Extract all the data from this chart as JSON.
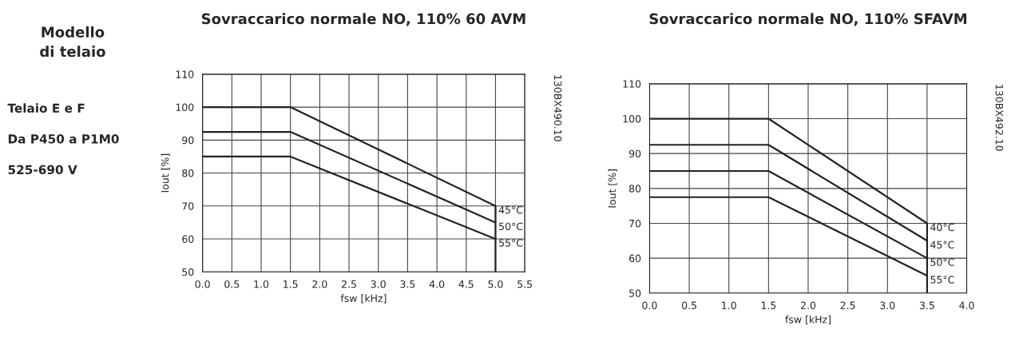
{
  "chart_data": [
    {
      "type": "other",
      "title": "Modello\ndi telaio",
      "annotations": [
        "Telaio E e F",
        "Da P450 a P1M0",
        "525-690 V"
      ]
    },
    {
      "type": "line",
      "title": "Sovraccarico normale NO, 110% 60 AVM",
      "xlabel": "fsw [kHz]",
      "ylabel": "Iout [%]",
      "xlim": [
        0,
        5.5
      ],
      "ylim": [
        50,
        110
      ],
      "xticks": [
        {
          "value": 0,
          "label": "0.0"
        },
        {
          "value": 0.5,
          "label": "0.5"
        },
        {
          "value": 1,
          "label": "1.0"
        },
        {
          "value": 1.5,
          "label": "1.5"
        },
        {
          "value": 2,
          "label": "2.0"
        },
        {
          "value": 2.5,
          "label": "2.5"
        },
        {
          "value": 3,
          "label": "3.0"
        },
        {
          "value": 3.5,
          "label": "3.5"
        },
        {
          "value": 4,
          "label": "4.0"
        },
        {
          "value": 4.5,
          "label": "4.5"
        },
        {
          "value": 5,
          "label": "5.0"
        },
        {
          "value": 5.5,
          "label": "5.5"
        }
      ],
      "yticks": [
        50,
        60,
        70,
        80,
        90,
        100,
        110
      ],
      "grid": true,
      "legend": false,
      "annotations": [
        "130BX490.10"
      ],
      "series": [
        {
          "name": "45°C",
          "color": "#222222",
          "x": [
            0,
            1.5,
            5,
            5
          ],
          "values": [
            100,
            100,
            70,
            50
          ]
        },
        {
          "name": "50°C",
          "color": "#222222",
          "x": [
            0,
            1.5,
            5
          ],
          "values": [
            92.5,
            92.5,
            65
          ]
        },
        {
          "name": "55°C",
          "color": "#222222",
          "x": [
            0,
            1.5,
            5
          ],
          "values": [
            85,
            85,
            60
          ]
        }
      ]
    },
    {
      "type": "line",
      "title": "Sovraccarico normale NO, 110% SFAVM",
      "xlabel": "fsw [kHz]",
      "ylabel": "Iout [%]",
      "xlim": [
        0,
        4
      ],
      "ylim": [
        50,
        110
      ],
      "xticks": [
        {
          "value": 0,
          "label": "0.0"
        },
        {
          "value": 0.5,
          "label": "0.5"
        },
        {
          "value": 1,
          "label": "1.0"
        },
        {
          "value": 1.5,
          "label": "1.5"
        },
        {
          "value": 2,
          "label": "2.0"
        },
        {
          "value": 2.5,
          "label": "2.5"
        },
        {
          "value": 3,
          "label": "3.0"
        },
        {
          "value": 3.5,
          "label": "3.5"
        },
        {
          "value": 4,
          "label": "4.0"
        }
      ],
      "yticks": [
        50,
        60,
        70,
        80,
        90,
        100,
        110
      ],
      "grid": true,
      "legend": false,
      "annotations": [
        "130BX492.10"
      ],
      "series": [
        {
          "name": "40°C",
          "color": "#222222",
          "x": [
            0,
            1.5,
            3.5,
            3.5
          ],
          "values": [
            100,
            100,
            70,
            50
          ]
        },
        {
          "name": "45°C",
          "color": "#222222",
          "x": [
            0,
            1.5,
            3.5
          ],
          "values": [
            92.5,
            92.5,
            65
          ]
        },
        {
          "name": "50°C",
          "color": "#222222",
          "x": [
            0,
            1.5,
            3.5
          ],
          "values": [
            85,
            85,
            60
          ]
        },
        {
          "name": "55°C",
          "color": "#222222",
          "x": [
            0,
            1.5,
            3.5
          ],
          "values": [
            77.5,
            77.5,
            55
          ]
        }
      ]
    }
  ]
}
